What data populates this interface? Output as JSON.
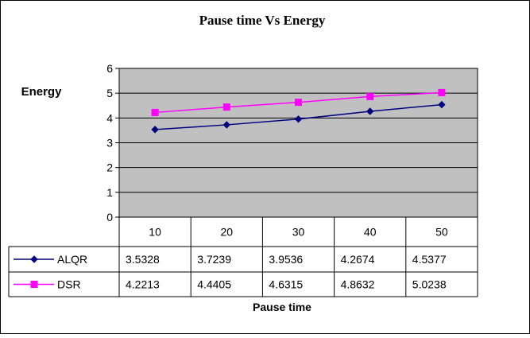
{
  "chart_data": {
    "type": "line",
    "title": "Pause time Vs Energy",
    "xlabel": "Pause time",
    "ylabel": "Energy",
    "categories": [
      "10",
      "20",
      "30",
      "40",
      "50"
    ],
    "ylim": [
      0,
      6
    ],
    "yticks": [
      0,
      1,
      2,
      3,
      4,
      5,
      6
    ],
    "grid": true,
    "data_table": true,
    "series": [
      {
        "name": "ALQR",
        "values": [
          3.5328,
          3.7239,
          3.9536,
          4.2674,
          4.5377
        ],
        "value_labels": [
          "3.5328",
          "3.7239",
          "3.9536",
          "4.2674",
          "4.5377"
        ],
        "color": "#000080",
        "marker": "diamond"
      },
      {
        "name": "DSR",
        "values": [
          4.2213,
          4.4405,
          4.6315,
          4.8632,
          5.0238
        ],
        "value_labels": [
          "4.2213",
          "4.4405",
          "4.6315",
          "4.8632",
          "5.0238"
        ],
        "color": "#ff00ff",
        "marker": "square"
      }
    ],
    "plot_background": "#c0c0c0"
  }
}
